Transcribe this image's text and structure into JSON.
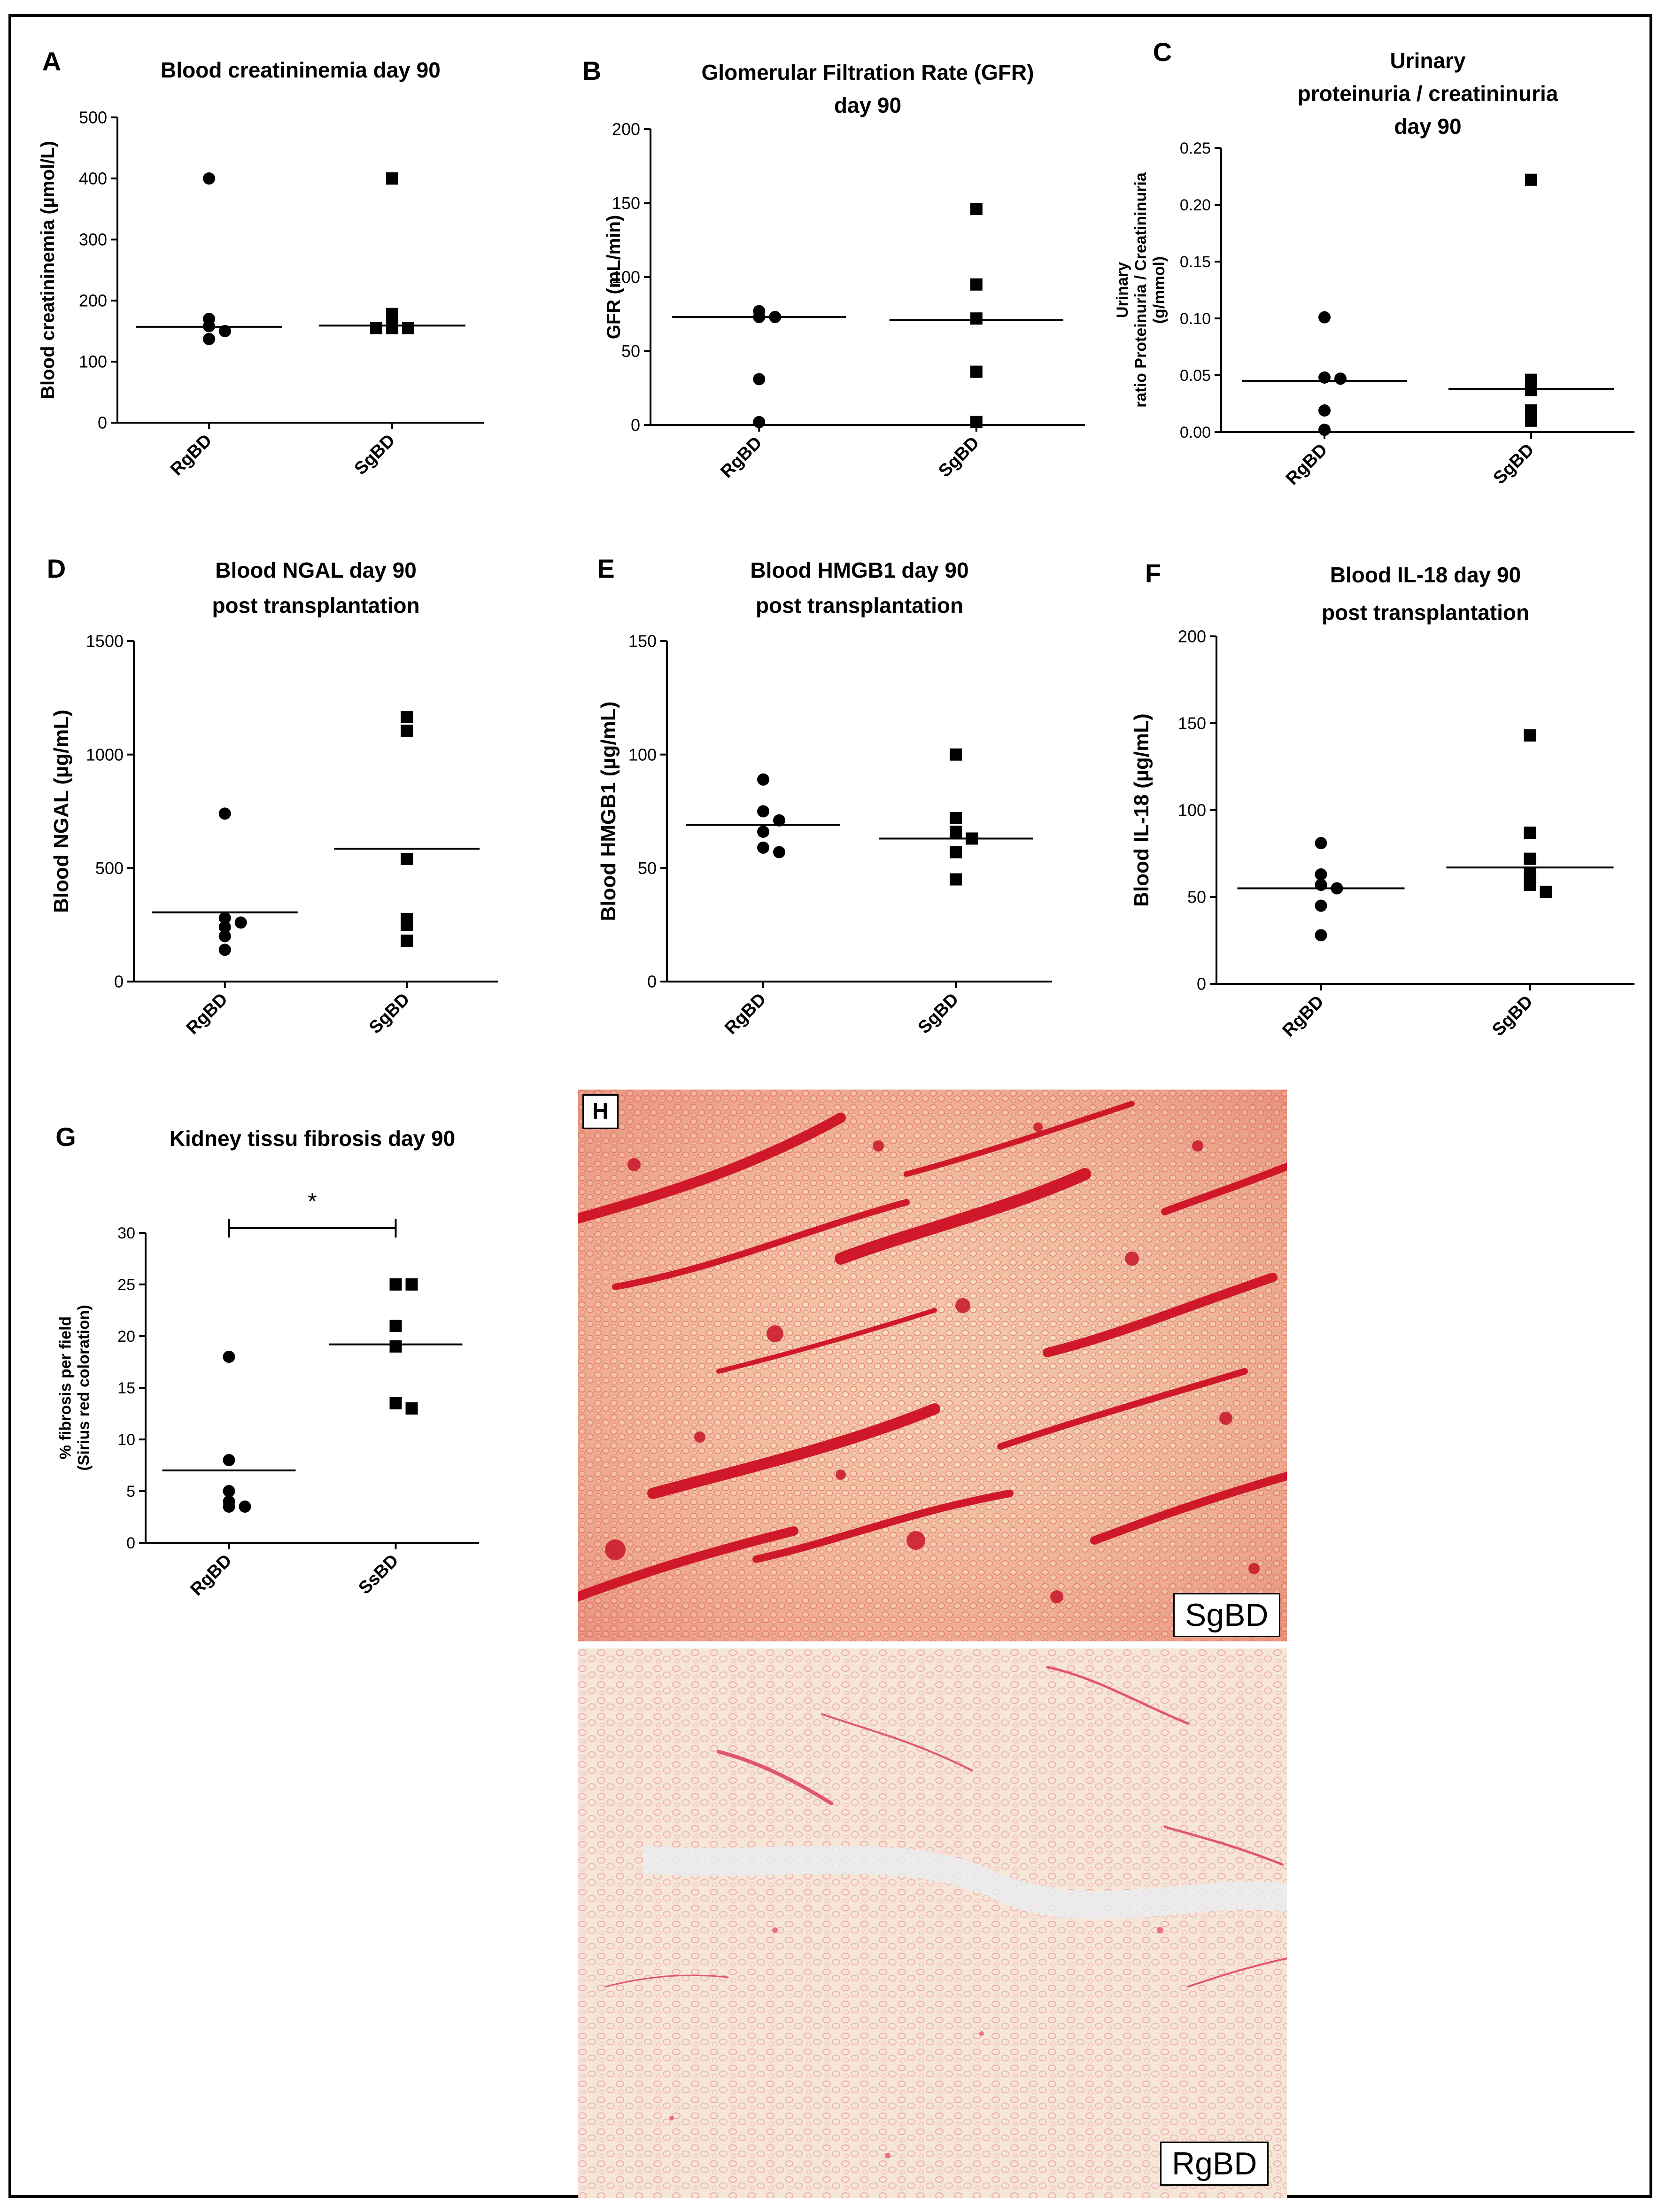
{
  "chart_data": [
    {
      "type": "scatter",
      "panel": "A",
      "title": [
        "Blood creatininemia day 90"
      ],
      "ylabel": [
        "Blood creatininemia (µmol/L)"
      ],
      "xlabel": "",
      "categories": [
        "RgBD",
        "SgBD"
      ],
      "ylim": [
        0,
        500
      ],
      "yticks": [
        "0",
        "100",
        "200",
        "300",
        "400",
        "500"
      ],
      "series": [
        {
          "marker": "circle",
          "values": [
            400,
            170,
            158,
            150,
            137
          ],
          "median": 157
        },
        {
          "marker": "square",
          "values": [
            400,
            178,
            162,
            155,
            155,
            155
          ],
          "median": 159
        }
      ],
      "significance": null
    },
    {
      "type": "scatter",
      "panel": "B",
      "title": [
        "Glomerular Filtration Rate (GFR)",
        "day 90"
      ],
      "ylabel": [
        "GFR (mL/min)"
      ],
      "xlabel": "",
      "categories": [
        "RgBD",
        "SgBD"
      ],
      "ylim": [
        0,
        200
      ],
      "yticks": [
        "0",
        "50",
        "100",
        "150",
        "200"
      ],
      "series": [
        {
          "marker": "circle",
          "values": [
            77,
            73,
            73,
            31,
            2
          ],
          "median": 73
        },
        {
          "marker": "square",
          "values": [
            146,
            95,
            72,
            36,
            2
          ],
          "median": 71
        }
      ],
      "significance": null
    },
    {
      "type": "scatter",
      "panel": "C",
      "title": [
        "Urinary",
        "proteinuria / creatininuria",
        "day 90"
      ],
      "ylabel": [
        "Urinary",
        "ratio Proteinuria / Creatininuria",
        "(g/mmol)"
      ],
      "xlabel": "",
      "categories": [
        "RgBD",
        "SgBD"
      ],
      "ylim": [
        0,
        0.25
      ],
      "yticks": [
        "0.00",
        "0.05",
        "0.10",
        "0.15",
        "0.20",
        "0.25"
      ],
      "series": [
        {
          "marker": "circle",
          "values": [
            0.101,
            0.048,
            0.047,
            0.019,
            0.002
          ],
          "median": 0.045
        },
        {
          "marker": "square",
          "values": [
            0.222,
            0.046,
            0.037,
            0.019,
            0.01
          ],
          "median": 0.038
        }
      ],
      "significance": null
    },
    {
      "type": "scatter",
      "panel": "D",
      "title": [
        "Blood NGAL  day 90",
        "post transplantation"
      ],
      "ylabel": [
        "Blood NGAL (µg/mL)"
      ],
      "xlabel": "",
      "categories": [
        "RgBD",
        "SgBD"
      ],
      "ylim": [
        0,
        1500
      ],
      "yticks": [
        "0",
        "500",
        "1000",
        "1500"
      ],
      "series": [
        {
          "marker": "circle",
          "values": [
            740,
            280,
            260,
            240,
            200,
            140
          ],
          "median": 305
        },
        {
          "marker": "square",
          "values": [
            1165,
            1105,
            540,
            275,
            250,
            180
          ],
          "median": 585
        }
      ],
      "significance": null
    },
    {
      "type": "scatter",
      "panel": "E",
      "title": [
        "Blood HMGB1  day 90",
        "post transplantation"
      ],
      "ylabel": [
        "Blood HMGB1 (µg/mL)"
      ],
      "xlabel": "",
      "categories": [
        "RgBD",
        "SgBD"
      ],
      "ylim": [
        0,
        150
      ],
      "yticks": [
        "0",
        "50",
        "100",
        "150"
      ],
      "series": [
        {
          "marker": "circle",
          "values": [
            89,
            75,
            71,
            66,
            59,
            57
          ],
          "median": 69
        },
        {
          "marker": "square",
          "values": [
            100,
            72,
            66,
            63,
            57,
            45
          ],
          "median": 63
        }
      ],
      "significance": null
    },
    {
      "type": "scatter",
      "panel": "F",
      "title": [
        "Blood IL-18 day 90",
        "post transplantation"
      ],
      "ylabel": [
        "Blood IL-18 (µg/mL)"
      ],
      "xlabel": "",
      "categories": [
        "RgBD",
        "SgBD"
      ],
      "ylim": [
        0,
        200
      ],
      "yticks": [
        "0",
        "50",
        "100",
        "150",
        "200"
      ],
      "series": [
        {
          "marker": "circle",
          "values": [
            81,
            63,
            57,
            55,
            45,
            28
          ],
          "median": 55
        },
        {
          "marker": "square",
          "values": [
            143,
            87,
            72,
            64,
            57,
            53
          ],
          "median": 67
        }
      ],
      "significance": null
    },
    {
      "type": "scatter",
      "panel": "G",
      "title": [
        "Kidney tissu fibrosis day 90"
      ],
      "ylabel": [
        "% fibrosis per field",
        "(Sirius red coloration)"
      ],
      "xlabel": "",
      "categories": [
        "RgBD",
        "SsBD"
      ],
      "ylim": [
        0,
        30
      ],
      "yticks": [
        "0",
        "5",
        "10",
        "15",
        "20",
        "25",
        "30"
      ],
      "series": [
        {
          "marker": "circle",
          "values": [
            18,
            8,
            5,
            4,
            3.5,
            3.5
          ],
          "median": 7
        },
        {
          "marker": "square",
          "values": [
            25,
            25,
            21,
            19,
            13.5,
            13
          ],
          "median": 19.2
        }
      ],
      "significance": "*"
    }
  ],
  "panel_h": {
    "letter": "H",
    "images": [
      {
        "label": "SgBD",
        "stain": "dense"
      },
      {
        "label": "RgBD",
        "stain": "light"
      }
    ]
  }
}
